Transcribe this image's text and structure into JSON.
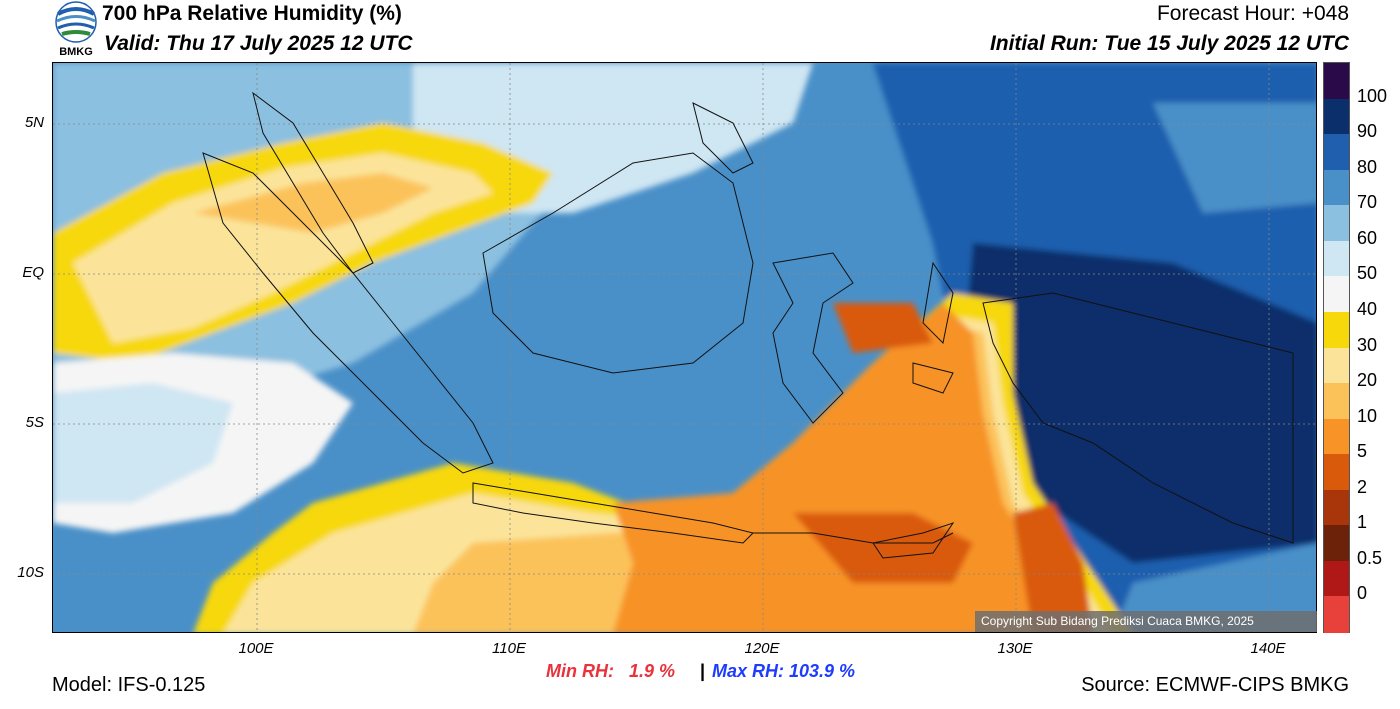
{
  "header": {
    "title": "700 hPa Relative Humidity (%)",
    "valid": "Valid: Thu 17 July 2025 12 UTC",
    "forecast_hour": "Forecast Hour: +048",
    "initial_run": "Initial Run: Tue 15 July 2025 12 UTC"
  },
  "logo": {
    "text": "BMKG"
  },
  "axes": {
    "lat_labels": [
      "5N",
      "EQ",
      "5S",
      "10S"
    ],
    "lon_labels": [
      "100E",
      "110E",
      "120E",
      "130E",
      "140E"
    ]
  },
  "colorbar": {
    "labels": [
      "100",
      "90",
      "80",
      "70",
      "60",
      "50",
      "40",
      "30",
      "20",
      "10",
      "5",
      "2",
      "1",
      "0.5",
      "0"
    ],
    "colors": [
      "#2b0a4a",
      "#0a2f6b",
      "#1f5fae",
      "#4a90c8",
      "#8cc0e0",
      "#cfe6f3",
      "#f5f5f5",
      "#f7d80a",
      "#fbe49a",
      "#fcc25a",
      "#f79327",
      "#d95a0a",
      "#a8360a",
      "#6b2209",
      "#b01818",
      "#e8403a"
    ]
  },
  "copyright": "Copyright Sub Bidang Prediksi Cuaca BMKG, 2025",
  "stats": {
    "min_label": "Min RH:   1.9 %",
    "separator": "|",
    "max_label": "Max RH: 103.9 %"
  },
  "footer": {
    "model": "Model: IFS-0.125",
    "source": "Source: ECMWF-CIPS BMKG"
  }
}
